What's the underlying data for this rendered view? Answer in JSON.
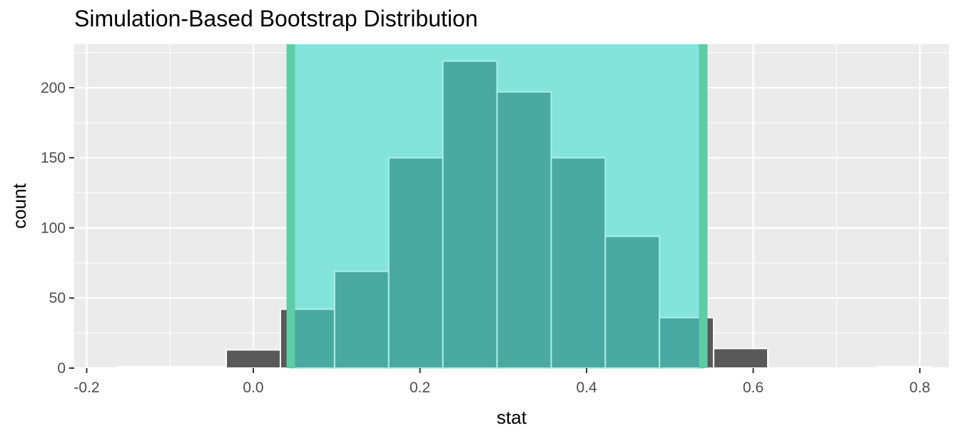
{
  "chart_data": {
    "type": "bar",
    "title": "Simulation-Based Bootstrap Distribution",
    "xlabel": "stat",
    "ylabel": "count",
    "xlim": [
      -0.215,
      0.835
    ],
    "ylim": [
      0,
      231
    ],
    "x_ticks": [
      -0.2,
      0.0,
      0.2,
      0.4,
      0.6,
      0.8
    ],
    "x_tick_labels": [
      "-0.2",
      "0.0",
      "0.2",
      "0.4",
      "0.6",
      "0.8"
    ],
    "y_ticks": [
      0,
      50,
      100,
      150,
      200
    ],
    "y_tick_labels": [
      "0",
      "50",
      "100",
      "150",
      "200"
    ],
    "bin_width": 0.065,
    "bin_centers": [
      -0.13,
      -0.065,
      0.0,
      0.065,
      0.13,
      0.195,
      0.26,
      0.325,
      0.39,
      0.455,
      0.52,
      0.585,
      0.65,
      0.715,
      0.78
    ],
    "counts": [
      1,
      1,
      13,
      42,
      69,
      150,
      219,
      197,
      150,
      94,
      36,
      14,
      0,
      0,
      1
    ],
    "confidence_interval": [
      0.045,
      0.54
    ],
    "grid": true,
    "colors": {
      "panel_background": "#ebebeb",
      "grid": "#ffffff",
      "bar_fill": "#595959",
      "bar_outline": "#ffffff",
      "bar_in_ci": "#4aa9a1",
      "bar_outline_in_ci": "#a9f0e6",
      "ci_fill": "#84e4dc",
      "ci_line": "#5ecca5"
    }
  }
}
